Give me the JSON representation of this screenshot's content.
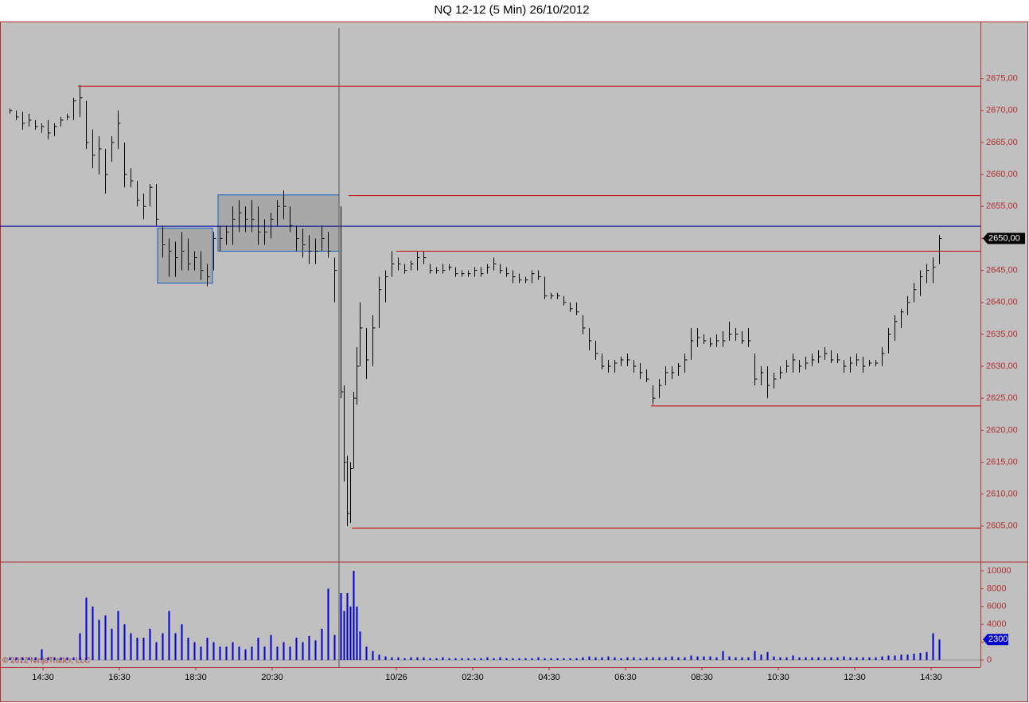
{
  "chart_data": {
    "type": "ohlc",
    "title": "NQ 12-12 (5 Min)  26/10/2012",
    "copyright": "© 2012 NinjaTrader, LLC",
    "xlim": [
      0,
      308
    ],
    "xticks": [
      {
        "value": 13.5,
        "label": "14:30"
      },
      {
        "value": 37.5,
        "label": "16:30"
      },
      {
        "value": 61.5,
        "label": "18:30"
      },
      {
        "value": 85.5,
        "label": "20:30"
      },
      {
        "value": 124.5,
        "label": "10/26"
      },
      {
        "value": 148.5,
        "label": "02:30"
      },
      {
        "value": 172.5,
        "label": "04:30"
      },
      {
        "value": 196.5,
        "label": "06:30"
      },
      {
        "value": 220.5,
        "label": "08:30"
      },
      {
        "value": 244.5,
        "label": "10:30"
      },
      {
        "value": 268.5,
        "label": "12:30"
      },
      {
        "value": 292.5,
        "label": "14:30"
      }
    ],
    "ylim": [
      2599.5,
      2683.8
    ],
    "yticks": [
      {
        "value": 2605,
        "label": "2605,00"
      },
      {
        "value": 2610,
        "label": "2610,00"
      },
      {
        "value": 2615,
        "label": "2615,00"
      },
      {
        "value": 2620,
        "label": "2620,00"
      },
      {
        "value": 2625,
        "label": "2625,00"
      },
      {
        "value": 2630,
        "label": "2630,00"
      },
      {
        "value": 2635,
        "label": "2635,00"
      },
      {
        "value": 2640,
        "label": "2640,00"
      },
      {
        "value": 2645,
        "label": "2645,00"
      },
      {
        "value": 2650,
        "label": "2650,00"
      },
      {
        "value": 2655,
        "label": "2655,00"
      },
      {
        "value": 2660,
        "label": "2660,00"
      },
      {
        "value": 2665,
        "label": "2665,00"
      },
      {
        "value": 2670,
        "label": "2670,00"
      },
      {
        "value": 2675,
        "label": "2675,00"
      }
    ],
    "vlim": [
      -804,
      10893
    ],
    "vticks": [
      0,
      2000,
      4000,
      6000,
      8000,
      10000
    ],
    "last_price": {
      "value": 2650,
      "label": "2650,00"
    },
    "bar_color": "#000000",
    "volume_color": "#0000cc",
    "x": [
      3,
      5,
      7,
      9,
      11,
      13,
      15,
      17,
      19,
      21,
      23,
      25,
      27,
      29,
      31,
      33,
      35,
      37,
      39,
      41,
      43,
      45,
      47,
      49,
      51,
      53,
      55,
      57,
      59,
      61,
      63,
      65,
      67,
      69,
      71,
      73,
      75,
      77,
      79,
      81,
      83,
      85,
      87,
      89,
      91,
      93,
      95,
      97,
      99,
      101,
      103,
      105,
      107,
      108,
      109,
      110,
      111,
      112,
      113,
      115,
      117,
      119,
      121,
      123,
      125,
      127,
      129,
      131,
      133,
      135,
      137,
      139,
      141,
      143,
      145,
      147,
      149,
      151,
      153,
      155,
      157,
      159,
      161,
      163,
      165,
      167,
      169,
      171,
      173,
      175,
      177,
      179,
      181,
      183,
      185,
      187,
      189,
      191,
      193,
      195,
      197,
      199,
      201,
      203,
      205,
      207,
      209,
      211,
      213,
      215,
      217,
      219,
      221,
      223,
      225,
      227,
      229,
      231,
      233,
      235,
      237,
      239,
      241,
      243,
      245,
      247,
      249,
      251,
      253,
      255,
      257,
      259,
      261,
      263,
      265,
      267,
      269,
      271,
      273,
      275,
      277,
      279,
      281,
      283,
      285,
      287,
      289,
      291,
      293,
      295
    ],
    "high": [
      2670.3,
      2670,
      2669.8,
      2669.5,
      2668.5,
      2668,
      2668.5,
      2668,
      2669,
      2669.5,
      2672,
      2674,
      2671.5,
      2667,
      2666,
      2664,
      2666,
      2670,
      2665,
      2661,
      2659,
      2657,
      2658.5,
      2658.5,
      2652,
      2650,
      2649.5,
      2651,
      2650,
      2648,
      2648,
      2646,
      2651,
      2652,
      2652,
      2655,
      2656,
      2655,
      2656,
      2655,
      2653,
      2654,
      2656,
      2657.5,
      2655,
      2652,
      2651.5,
      2650.5,
      2650,
      2652,
      2651,
      2647,
      2655,
      2627,
      2616,
      2615,
      2626,
      2633,
      2640,
      2636,
      2638,
      2644,
      2645,
      2648,
      2647,
      2646,
      2646.5,
      2648,
      2648,
      2646,
      2645.5,
      2646,
      2646,
      2645.5,
      2645,
      2645,
      2645.5,
      2645.5,
      2646,
      2647,
      2646,
      2645.5,
      2645,
      2644.5,
      2644,
      2645,
      2645,
      2644,
      2641.5,
      2641.5,
      2641,
      2640,
      2640,
      2638,
      2636,
      2634,
      2632,
      2631,
      2631,
      2631.5,
      2632,
      2631,
      2630.5,
      2629.5,
      2627,
      2628,
      2630,
      2630,
      2630.5,
      2632,
      2636,
      2636,
      2635,
      2634.5,
      2635,
      2635.5,
      2637,
      2636,
      2635.5,
      2636,
      2632,
      2630,
      2630,
      2629,
      2630,
      2631,
      2632,
      2631,
      2631.5,
      2632,
      2632.5,
      2633,
      2632.5,
      2632,
      2631,
      2631.5,
      2632,
      2631.5,
      2631,
      2631,
      2633,
      2636,
      2638,
      2639,
      2641,
      2643,
      2645,
      2646,
      2647,
      2650.5
    ],
    "low": [
      2669.5,
      2668.5,
      2667,
      2667.5,
      2667,
      2666.5,
      2665.5,
      2666,
      2667.5,
      2668.5,
      2668.5,
      2669,
      2664,
      2661,
      2660,
      2657,
      2662,
      2664,
      2658,
      2658,
      2655,
      2653,
      2655,
      2652,
      2647,
      2644,
      2644,
      2645,
      2645,
      2645,
      2643.5,
      2642.5,
      2645,
      2648,
      2649,
      2649,
      2651,
      2651,
      2651,
      2649,
      2649,
      2650,
      2652,
      2653,
      2651,
      2648,
      2647,
      2646,
      2646,
      2648,
      2647,
      2640,
      2625,
      2612,
      2605,
      2605.5,
      2614,
      2624,
      2630,
      2628,
      2630,
      2636,
      2640,
      2644,
      2645,
      2644.5,
      2645,
      2645,
      2646,
      2644.5,
      2644.5,
      2644.5,
      2645,
      2644,
      2644,
      2644,
      2644,
      2644,
      2644.5,
      2645,
      2644.5,
      2644,
      2643,
      2643,
      2643,
      2643,
      2643.5,
      2640.5,
      2640.5,
      2640.5,
      2639.5,
      2638.5,
      2638,
      2635,
      2632.5,
      2631,
      2629.5,
      2629,
      2629,
      2630,
      2630,
      2629,
      2628,
      2627.5,
      2624,
      2625,
      2627,
      2628,
      2628.5,
      2629,
      2631,
      2633,
      2633.5,
      2633,
      2633,
      2633,
      2634,
      2634,
      2633.5,
      2633,
      2627,
      2627,
      2625,
      2626.5,
      2628,
      2629,
      2629,
      2629,
      2629.5,
      2630,
      2630.5,
      2631,
      2630.5,
      2630.5,
      2629,
      2629,
      2630,
      2629,
      2630,
      2630,
      2630,
      2632,
      2634,
      2636,
      2638,
      2640,
      2641,
      2643,
      2643,
      2646
    ],
    "close": [
      2670,
      2669,
      2668,
      2668.5,
      2667.5,
      2667.5,
      2666.5,
      2667.5,
      2668.5,
      2669,
      2671.5,
      2672,
      2665,
      2663,
      2664,
      2660,
      2665,
      2668,
      2660,
      2659,
      2656,
      2655,
      2658,
      2653,
      2649,
      2648,
      2647,
      2648,
      2646,
      2647,
      2645,
      2644,
      2650,
      2650,
      2651,
      2653,
      2654,
      2653,
      2653,
      2651,
      2651,
      2653,
      2655,
      2655,
      2652,
      2650,
      2649,
      2648,
      2648,
      2650,
      2648,
      2645,
      2626,
      2615,
      2607,
      2614,
      2625,
      2630,
      2636,
      2631,
      2636,
      2642,
      2644,
      2646,
      2646,
      2645,
      2646,
      2647,
      2647,
      2645,
      2645,
      2645,
      2645.5,
      2644.5,
      2644.5,
      2644.5,
      2645,
      2644.5,
      2645.5,
      2646,
      2645,
      2644.5,
      2644,
      2643.5,
      2643.5,
      2644.5,
      2644,
      2641,
      2641,
      2641,
      2640,
      2639,
      2638.5,
      2636,
      2634,
      2632,
      2630,
      2630,
      2630.5,
      2631,
      2631,
      2630,
      2629,
      2628,
      2625,
      2627,
      2629,
      2629,
      2630,
      2631,
      2634,
      2634.5,
      2634,
      2633.5,
      2634,
      2634,
      2635,
      2635,
      2634,
      2634,
      2628,
      2629,
      2627,
      2628,
      2629,
      2630,
      2631,
      2630,
      2630.5,
      2631,
      2631.5,
      2632,
      2631,
      2631,
      2630,
      2630.5,
      2631,
      2630,
      2630.5,
      2630.5,
      2632,
      2635,
      2637,
      2638.5,
      2640,
      2642,
      2644,
      2645,
      2645.5,
      2650
    ],
    "volume": [
      300,
      300,
      300,
      300,
      300,
      1200,
      300,
      300,
      300,
      300,
      300,
      3000,
      7000,
      6000,
      4500,
      5000,
      3500,
      5500,
      4000,
      3000,
      2500,
      2500,
      3500,
      2000,
      3000,
      5500,
      3000,
      4000,
      2500,
      2000,
      1500,
      2500,
      2000,
      1500,
      1500,
      2000,
      1500,
      1200,
      1500,
      2500,
      1500,
      2800,
      1500,
      2000,
      1500,
      2500,
      2000,
      2700,
      2200,
      3500,
      8000,
      2800,
      7500,
      5500,
      7500,
      6000,
      10000,
      6000,
      3200,
      1500,
      1000,
      600,
      400,
      300,
      300,
      200,
      300,
      300,
      300,
      200,
      200,
      300,
      200,
      200,
      200,
      200,
      200,
      200,
      300,
      200,
      300,
      200,
      200,
      200,
      200,
      200,
      300,
      200,
      200,
      200,
      200,
      200,
      200,
      300,
      400,
      300,
      300,
      400,
      300,
      200,
      300,
      300,
      200,
      300,
      300,
      300,
      300,
      400,
      300,
      300,
      500,
      400,
      400,
      400,
      300,
      1000,
      400,
      300,
      300,
      300,
      1000,
      600,
      900,
      400,
      300,
      300,
      500,
      300,
      300,
      300,
      300,
      300,
      300,
      300,
      400,
      300,
      300,
      300,
      300,
      300,
      400,
      500,
      500,
      600,
      600,
      700,
      800,
      900,
      3000,
      2300
    ],
    "levels": [
      {
        "value": 2673.8,
        "start": 24.5,
        "color": "#cc0000"
      },
      {
        "value": 2656.7,
        "start": 109.5,
        "color": "#cc0000"
      },
      {
        "value": 2651.9,
        "start": 0,
        "color": "#000099"
      },
      {
        "value": 2648,
        "start": 124.5,
        "color": "#cc0000"
      },
      {
        "value": 2623.8,
        "start": 204.5,
        "color": "#cc0000"
      },
      {
        "value": 2604.7,
        "start": 110.5,
        "color": "#cc0000"
      }
    ],
    "boxes": [
      {
        "x0": 49.5,
        "x1": 66.75,
        "y0": 2643,
        "y1": 2651.6
      },
      {
        "x0": 68.5,
        "x1": 106.5,
        "y0": 2648,
        "y1": 2656.8
      }
    ],
    "cursor_x": 106.5
  }
}
